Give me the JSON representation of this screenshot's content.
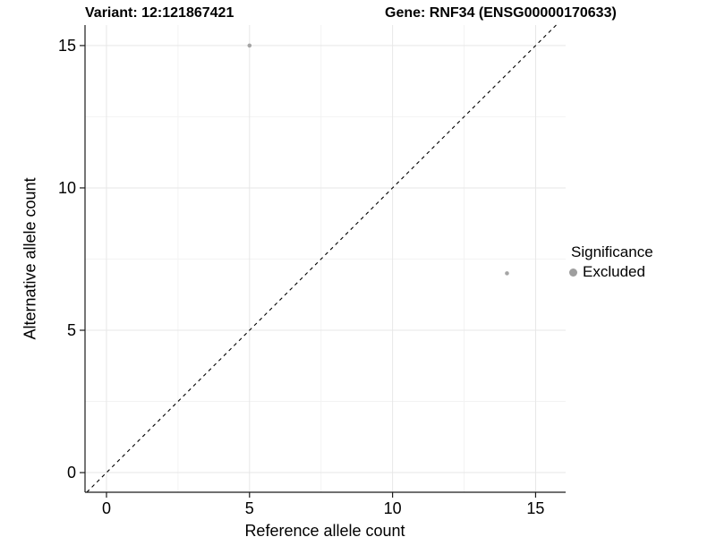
{
  "figure": {
    "title_left": "Variant: 12:121867421",
    "title_right": "Gene: RNF34 (ENSG00000170633)"
  },
  "chart_data": {
    "type": "scatter",
    "title": "Variant: 12:121867421  Gene: RNF34 (ENSG00000170633)",
    "xlabel": "Reference allele count",
    "ylabel": "Alternative allele count",
    "xlim": [
      -0.75,
      16.05
    ],
    "ylim": [
      -0.69,
      15.72
    ],
    "x_ticks": [
      0,
      5,
      10,
      15
    ],
    "y_ticks": [
      0,
      5,
      10,
      15
    ],
    "x_minor_ticks": [
      2.5,
      7.5,
      12.5
    ],
    "y_minor_ticks": [
      2.5,
      7.5,
      12.5
    ],
    "grid": true,
    "series": [
      {
        "name": "Excluded",
        "color": "#a5a5a5",
        "points": [
          [
            5,
            15
          ],
          [
            14,
            7
          ]
        ]
      }
    ],
    "reference_line": {
      "type": "identity",
      "slope": 1,
      "intercept": 0,
      "style": "dashed",
      "color": "#000000"
    },
    "legend": {
      "title": "Significance",
      "position": "right",
      "items": [
        {
          "label": "Excluded",
          "color": "#9e9e9e"
        }
      ]
    },
    "colors": {
      "major_grid": "#e7e7e7",
      "minor_grid": "#f3f3f3",
      "axis_line": "#1a1a1a",
      "tick_text": "#000000"
    }
  }
}
